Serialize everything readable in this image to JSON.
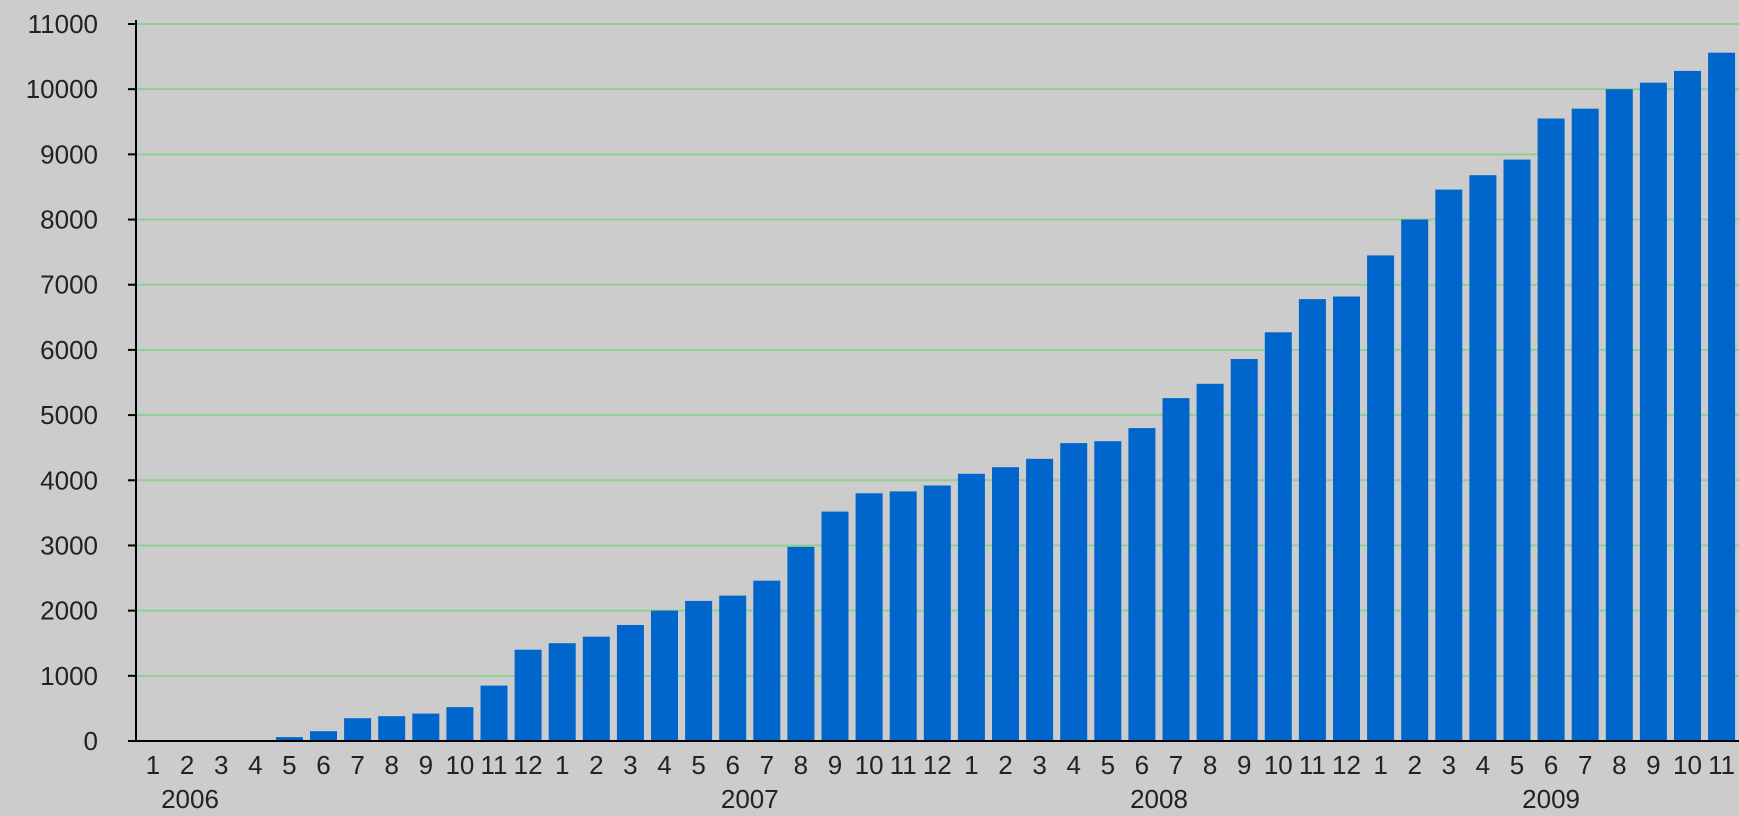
{
  "chart_data": {
    "type": "bar",
    "title": "",
    "xlabel": "",
    "ylabel": "",
    "ylim": [
      0,
      11000
    ],
    "yticks": [
      0,
      1000,
      2000,
      3000,
      4000,
      5000,
      6000,
      7000,
      8000,
      9000,
      10000,
      11000
    ],
    "grid": true,
    "legend": "none",
    "categories": [
      "1",
      "2",
      "3",
      "4",
      "5",
      "6",
      "7",
      "8",
      "9",
      "10",
      "11",
      "12",
      "1",
      "2",
      "3",
      "4",
      "5",
      "6",
      "7",
      "8",
      "9",
      "10",
      "11",
      "12",
      "1",
      "2",
      "3",
      "4",
      "5",
      "6",
      "7",
      "8",
      "9",
      "10",
      "11",
      "12",
      "1",
      "2",
      "3",
      "4",
      "5",
      "6",
      "7",
      "8",
      "9",
      "10",
      "11"
    ],
    "years": [
      {
        "label": "2006",
        "start_index": 0
      },
      {
        "label": "2007",
        "start_index": 12
      },
      {
        "label": "2008",
        "start_index": 24
      },
      {
        "label": "2009",
        "start_index": 36
      }
    ],
    "values": [
      0,
      0,
      0,
      0,
      60,
      150,
      350,
      380,
      420,
      520,
      850,
      1400,
      1500,
      1600,
      1780,
      2000,
      2150,
      2230,
      2460,
      2980,
      3520,
      3800,
      3830,
      3920,
      4100,
      4200,
      4330,
      4570,
      4600,
      4800,
      5260,
      5480,
      5860,
      6270,
      6780,
      6820,
      7450,
      8000,
      8460,
      8680,
      8920,
      9550,
      9700,
      10000,
      10100,
      10280,
      10560
    ],
    "colors": {
      "bar": "#0066cc",
      "grid": "#8fcf8f",
      "axis": "#000000",
      "background": "#cccccc"
    }
  }
}
